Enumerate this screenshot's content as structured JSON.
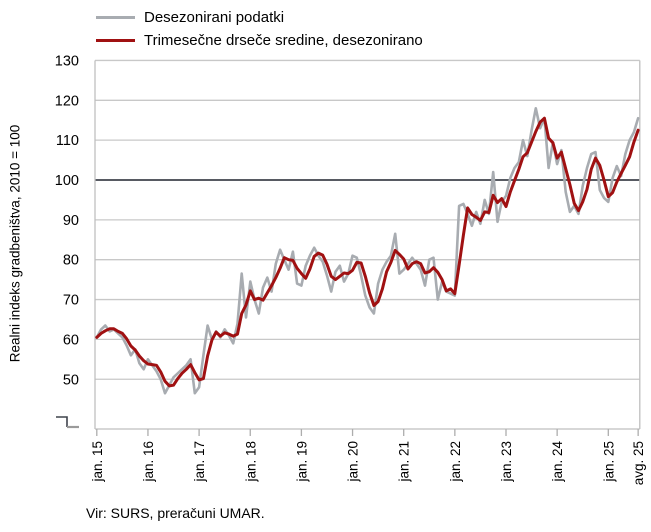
{
  "legend": {
    "items": [
      {
        "label": "Desezonirani podatki",
        "color": "#A8ACB1"
      },
      {
        "label": "Trimesečne drseče sredine, desezonirano",
        "color": "#A01112"
      }
    ]
  },
  "y_axis": {
    "title": "Realni indeks gradbeništva, 2010 = 100",
    "ticks": [
      130,
      120,
      110,
      100,
      90,
      80,
      70,
      60,
      50
    ]
  },
  "x_axis": {
    "ticks": [
      {
        "label": "jan. 15",
        "month": 0
      },
      {
        "label": "jan. 16",
        "month": 12
      },
      {
        "label": "jan. 17",
        "month": 24
      },
      {
        "label": "jan. 18",
        "month": 36
      },
      {
        "label": "jan. 19",
        "month": 48
      },
      {
        "label": "jan. 20",
        "month": 60
      },
      {
        "label": "jan. 21",
        "month": 72
      },
      {
        "label": "jan. 22",
        "month": 84
      },
      {
        "label": "jan. 23",
        "month": 96
      },
      {
        "label": "jan. 24",
        "month": 108
      },
      {
        "label": "jan. 25",
        "month": 120
      },
      {
        "label": "avg. 25",
        "month": 127
      }
    ]
  },
  "source": {
    "text": "Vir: SURS, preračuni UMAR."
  },
  "colors": {
    "gridline": "#C8C8C8",
    "axis": "#BFBFBF",
    "tick": "#ADADAD",
    "reference_line": "#3F434C",
    "axis_break_dark": "#3F434C",
    "axis_break_gray": "#9A9A9A",
    "text": "#000000",
    "background": "#FFFFFF"
  },
  "chart_data": {
    "type": "line",
    "title": "",
    "ylabel": "Realni indeks gradbeništva, 2010 = 100",
    "ylim": [
      40,
      130
    ],
    "y_axis_break": true,
    "reference_line": 100,
    "grid": "horizontal",
    "legend_position": "top-left",
    "frequency": "monthly",
    "x_start": "2015-01",
    "x_end": "2025-08",
    "series": [
      {
        "name": "Desezonirani podatki",
        "color": "#A8ACB1",
        "values": [
          60.5,
          62.5,
          63.5,
          62,
          62.5,
          61.5,
          60.5,
          58.5,
          56,
          57.5,
          54,
          52.5,
          55,
          53.5,
          52,
          50,
          46.5,
          48.5,
          50.5,
          51.5,
          52.5,
          53.5,
          55,
          46.5,
          48,
          56,
          63.5,
          60,
          62,
          60.5,
          62.5,
          61,
          59,
          64,
          76.5,
          65.5,
          74.5,
          70,
          66.5,
          73,
          75.5,
          72,
          79,
          82.5,
          80,
          77.5,
          82,
          74,
          73.5,
          78.5,
          81,
          83,
          81,
          79.5,
          76,
          72,
          77,
          78.5,
          74.5,
          76.5,
          81,
          80.5,
          76,
          71,
          68,
          66.5,
          74,
          77.5,
          79.5,
          81,
          86.5,
          76.5,
          77.5,
          79,
          80.5,
          79,
          77.5,
          73.5,
          80,
          80.5,
          70,
          74.5,
          72,
          71.5,
          71,
          93.5,
          94,
          91.5,
          88.5,
          92,
          89,
          95,
          91.5,
          102,
          89.5,
          94.5,
          96,
          100.5,
          103,
          104.5,
          110,
          106,
          112.5,
          118,
          113,
          115.5,
          103,
          109.5,
          104,
          107.5,
          97,
          92,
          93.5,
          91.5,
          98.5,
          103,
          106.5,
          107,
          97.5,
          95.5,
          94.5,
          100.5,
          103.5,
          101,
          106.5,
          110,
          112,
          115.5
        ]
      },
      {
        "name": "Trimesečne drseče sredine, desezonirano",
        "color": "#A01112",
        "derived": "trailing 3-month moving average of series 0"
      }
    ]
  }
}
